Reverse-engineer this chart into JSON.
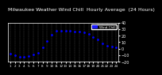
{
  "title": "Milwaukee Weather Wind Chill  Hourly Average  (24 Hours)",
  "hours": [
    1,
    2,
    3,
    4,
    5,
    6,
    7,
    8,
    9,
    10,
    11,
    12,
    13,
    14,
    15,
    16,
    17,
    18,
    19,
    20,
    21,
    22,
    23,
    24
  ],
  "wind_chill": [
    -8,
    -10,
    -12,
    -13,
    -11,
    -9,
    -6,
    2,
    12,
    22,
    27,
    27,
    27,
    27,
    26,
    26,
    25,
    23,
    18,
    14,
    8,
    5,
    3,
    2
  ],
  "dot_color": "#0000ff",
  "legend_color": "#1a1aff",
  "bg_color": "#000000",
  "plot_bg": "#000000",
  "fig_bg": "#000000",
  "ylim_min": -20,
  "ylim_max": 40,
  "ytick_values": [
    -20,
    -10,
    0,
    10,
    20,
    30,
    40
  ],
  "grid_color": "#555555",
  "title_fontsize": 4.5,
  "tick_fontsize": 3.5,
  "legend_label": "Wind Chill",
  "text_color": "#ffffff",
  "tick_color": "#ffffff",
  "spine_color": "#ffffff"
}
